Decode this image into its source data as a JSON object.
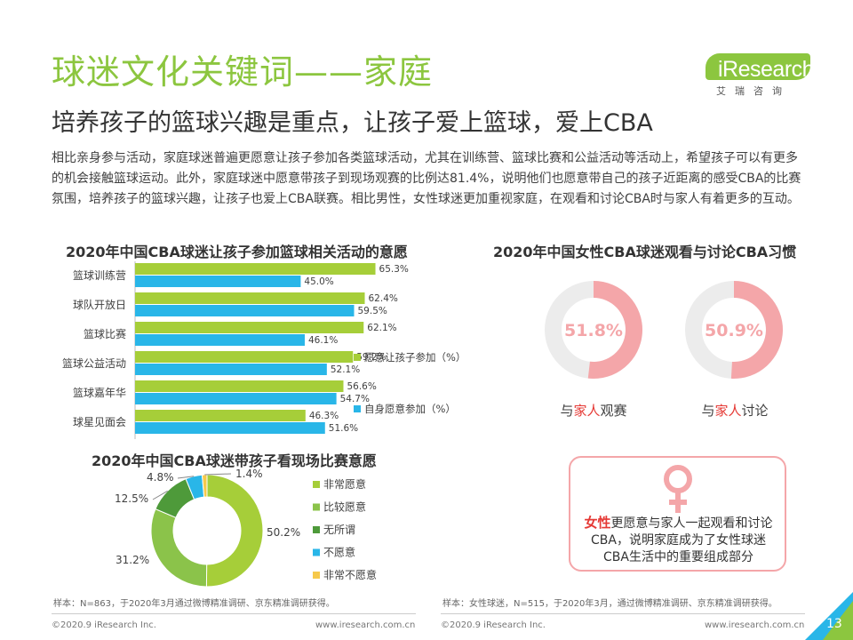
{
  "header": {
    "title": "球迷文化关键词——家庭",
    "subtitle": "培养孩子的篮球兴趣是重点，让孩子爱上篮球，爱上CBA",
    "intro": "相比亲身参与活动，家庭球迷普遍更愿意让孩子参加各类篮球活动，尤其在训练营、篮球比赛和公益活动等活动上，希望孩子可以有更多的机会接触篮球运动。此外，家庭球迷中愿意带孩子到现场观赛的比例达81.4%，说明他们也愿意带自己的孩子近距离的感受CBA的比赛氛围，培养孩子的篮球兴趣，让孩子也爱上CBA联赛。相比男性，女性球迷更加重视家庭，在观看和讨论CBA时与家人有着更多的互动。"
  },
  "logo": {
    "name": "iResearch",
    "sub": "艾瑞咨询"
  },
  "colors": {
    "green": "#a6ce39",
    "blue": "#29b6e8",
    "pink": "#f4a6a9",
    "darkgreen": "#4e9a3a",
    "yellow": "#f6c94b",
    "grey": "#ececec"
  },
  "chart_data": [
    {
      "type": "bar",
      "orientation": "horizontal",
      "title": "2020年中国CBA球迷让孩子参加篮球相关活动的意愿",
      "categories": [
        "篮球训练营",
        "球队开放日",
        "篮球比赛",
        "篮球公益活动",
        "篮球嘉年华",
        "球星见面会"
      ],
      "series": [
        {
          "name": "愿意让孩子参加（%）",
          "values": [
            65.3,
            62.4,
            62.1,
            59.2,
            56.6,
            46.3
          ]
        },
        {
          "name": "自身愿意参加（%）",
          "values": [
            45.0,
            59.5,
            46.1,
            52.1,
            54.7,
            51.6
          ]
        }
      ],
      "value_suffix": "%",
      "xlim": [
        0,
        70
      ]
    },
    {
      "type": "pie",
      "title": "2020年中国女性CBA球迷观看与讨论CBA习惯",
      "charts": [
        {
          "value": 51.8,
          "label_pre": "与",
          "label_hl": "家人",
          "label_post": "观赛",
          "display": "51.8%"
        },
        {
          "value": 50.9,
          "label_pre": "与",
          "label_hl": "家人",
          "label_post": "讨论",
          "display": "50.9%"
        }
      ]
    },
    {
      "type": "pie",
      "title": "2020年中国CBA球迷带孩子看现场比赛意愿",
      "categories": [
        "非常愿意",
        "比较愿意",
        "无所谓",
        "不愿意",
        "非常不愿意"
      ],
      "values": [
        50.2,
        31.2,
        12.5,
        4.8,
        1.4
      ],
      "labels": [
        "50.2%",
        "31.2%",
        "12.5%",
        "4.8%",
        "1.4%"
      ]
    }
  ],
  "female_box": {
    "highlight": "女性",
    "text": "更愿意与家人一起观看和讨论CBA，说明家庭成为了女性球迷CBA生活中的重要组成部分"
  },
  "sources": {
    "left": "样本：N=863，于2020年3月通过微博精准调研、京东精准调研获得。",
    "right": "样本：女性球迷，N=515，于2020年3月，通过微博精准调研、京东精准调研获得。"
  },
  "footer": {
    "copyright_left": "©2020.9 iResearch Inc.",
    "url_left": "www.iresearch.com.cn",
    "copyright_right": "©2020.9 iResearch Inc.",
    "url_right": "www.iresearch.com.cn",
    "page": "13"
  }
}
